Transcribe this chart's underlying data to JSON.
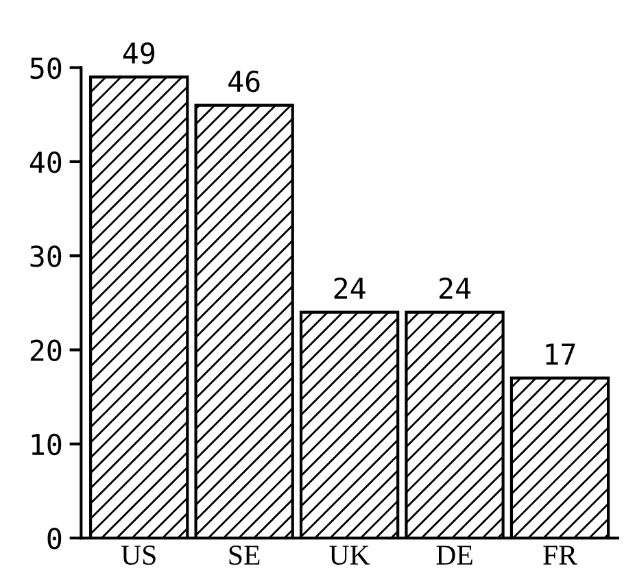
{
  "chart_data": {
    "type": "bar",
    "categories": [
      "US",
      "SE",
      "UK",
      "DE",
      "FR"
    ],
    "values": [
      49,
      46,
      24,
      24,
      17
    ],
    "color": "#000000",
    "ylim": [
      0,
      50
    ],
    "yticks": [
      0,
      10,
      20,
      30,
      40,
      50
    ],
    "grid": false,
    "data_labels": true
  }
}
